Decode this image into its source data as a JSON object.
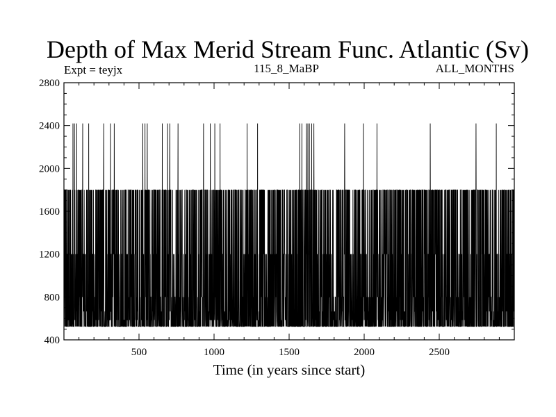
{
  "chart_data": {
    "type": "line",
    "title": "Depth of Max Merid Stream Func. Atlantic (Sv)",
    "subtitle_left": "Expt = teyjx",
    "subtitle_center": "115_8_MaBP",
    "subtitle_right": "ALL_MONTHS",
    "xlabel": "Time (in years since start)",
    "ylabel": "",
    "xlim": [
      0,
      3000
    ],
    "ylim": [
      400,
      2800
    ],
    "xticks": [
      500,
      1000,
      1500,
      2000,
      2500
    ],
    "yticks": [
      400,
      800,
      1200,
      1600,
      2000,
      2400,
      2800
    ],
    "grid": false,
    "series_color": "#000000",
    "depth_levels": [
      525,
      585,
      665,
      800,
      1200,
      1800,
      2420
    ],
    "spike_to_2420_years": [
      60,
      70,
      85,
      125,
      165,
      265,
      310,
      335,
      525,
      540,
      555,
      655,
      690,
      705,
      760,
      930,
      975,
      1005,
      1040,
      1220,
      1290,
      1570,
      1585,
      1615,
      1625,
      1635,
      1650,
      1665,
      1870,
      1995,
      2085,
      2440,
      2745,
      2880
    ],
    "n_years": 3000
  }
}
